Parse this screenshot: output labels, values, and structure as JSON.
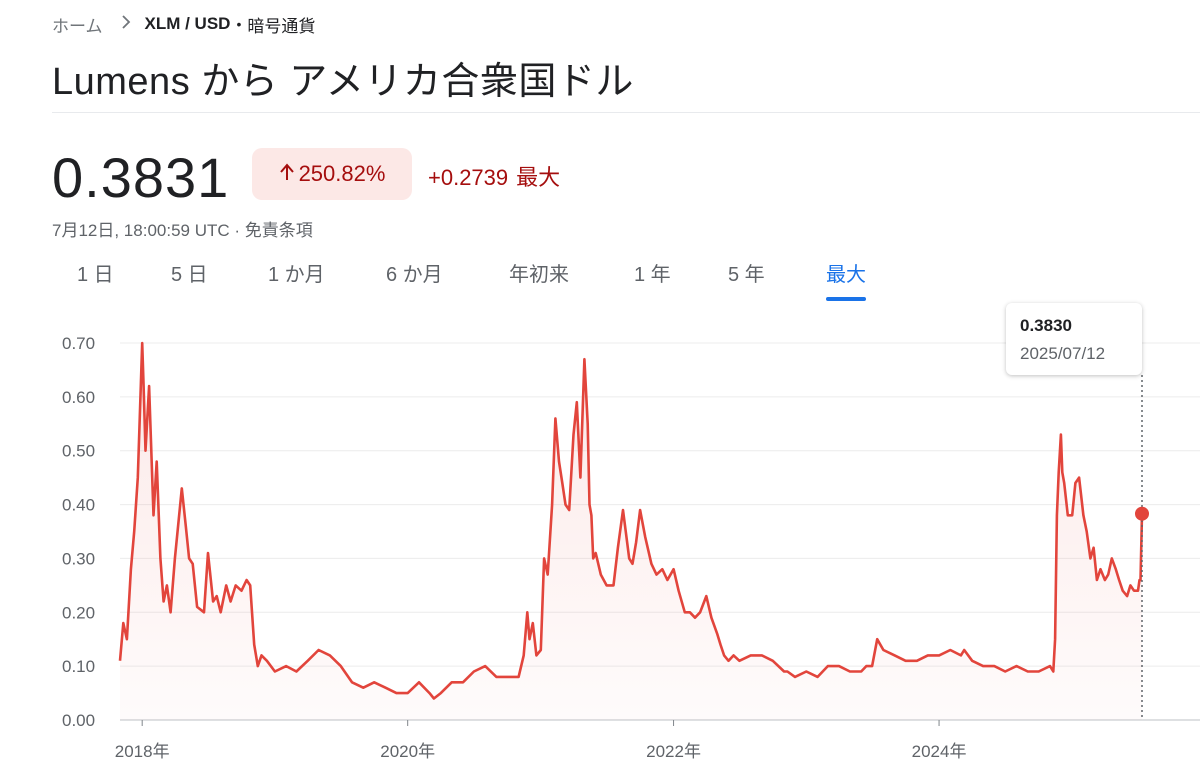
{
  "breadcrumb": {
    "home": "ホーム",
    "pair": "XLM / USD",
    "category": "暗号通貨"
  },
  "title": "Lumens から アメリカ合衆国ドル",
  "quote": {
    "price": "0.3831",
    "change_pct": "250.82%",
    "change_abs": "+0.2739",
    "range_label": "最大",
    "timestamp": "7月12日, 18:00:59 UTC",
    "disclaimer": "免責条項"
  },
  "tabs": [
    {
      "label": "1 日",
      "active": false
    },
    {
      "label": "5 日",
      "active": false
    },
    {
      "label": "1 か月",
      "active": false
    },
    {
      "label": "6 か月",
      "active": false
    },
    {
      "label": "年初来",
      "active": false
    },
    {
      "label": "1 年",
      "active": false
    },
    {
      "label": "5 年",
      "active": false
    },
    {
      "label": "最大",
      "active": true
    }
  ],
  "tooltip": {
    "value": "0.3830",
    "date": "2025/07/12"
  },
  "colors": {
    "line": "#e2453c",
    "negative": "#a50e0e",
    "badge_bg": "#fce8e6",
    "accent": "#1a73e8"
  },
  "chart_data": {
    "type": "area",
    "x_label_years": [
      "2018年",
      "2020年",
      "2022年",
      "2024年"
    ],
    "yticks": [
      "0.70",
      "0.60",
      "0.50",
      "0.40",
      "0.30",
      "0.20",
      "0.10",
      "0.00"
    ],
    "ylim": [
      0,
      0.7
    ],
    "grid": true,
    "series": [
      {
        "x": [
          "2017-11-01",
          "2017-11-10",
          "2017-11-20",
          "2017-12-01",
          "2017-12-10",
          "2017-12-20",
          "2018-01-01",
          "2018-01-05",
          "2018-01-10",
          "2018-01-20",
          "2018-02-01",
          "2018-02-10",
          "2018-02-20",
          "2018-03-01",
          "2018-03-10",
          "2018-03-20",
          "2018-04-01",
          "2018-04-20",
          "2018-05-01",
          "2018-05-10",
          "2018-05-20",
          "2018-06-01",
          "2018-06-20",
          "2018-07-01",
          "2018-07-15",
          "2018-07-25",
          "2018-08-05",
          "2018-08-20",
          "2018-09-01",
          "2018-09-15",
          "2018-10-01",
          "2018-10-15",
          "2018-10-25",
          "2018-11-05",
          "2018-11-15",
          "2018-11-25",
          "2018-12-10",
          "2019-01-01",
          "2019-02-01",
          "2019-03-01",
          "2019-04-01",
          "2019-05-01",
          "2019-06-01",
          "2019-07-01",
          "2019-08-01",
          "2019-09-01",
          "2019-10-01",
          "2019-11-01",
          "2019-12-01",
          "2020-01-01",
          "2020-02-01",
          "2020-03-01",
          "2020-03-13",
          "2020-04-01",
          "2020-05-01",
          "2020-06-01",
          "2020-07-01",
          "2020-08-01",
          "2020-09-01",
          "2020-10-01",
          "2020-11-01",
          "2020-11-15",
          "2020-11-25",
          "2020-12-01",
          "2020-12-10",
          "2020-12-20",
          "2021-01-01",
          "2021-01-10",
          "2021-01-20",
          "2021-02-01",
          "2021-02-10",
          "2021-02-20",
          "2021-03-01",
          "2021-03-10",
          "2021-03-20",
          "2021-04-01",
          "2021-04-10",
          "2021-04-20",
          "2021-05-01",
          "2021-05-10",
          "2021-05-15",
          "2021-05-20",
          "2021-05-25",
          "2021-06-01",
          "2021-06-15",
          "2021-07-01",
          "2021-07-20",
          "2021-08-01",
          "2021-08-15",
          "2021-09-01",
          "2021-09-10",
          "2021-09-20",
          "2021-10-01",
          "2021-10-15",
          "2021-11-01",
          "2021-11-15",
          "2021-12-01",
          "2021-12-15",
          "2022-01-01",
          "2022-01-15",
          "2022-02-01",
          "2022-02-15",
          "2022-03-01",
          "2022-03-15",
          "2022-04-01",
          "2022-04-15",
          "2022-05-01",
          "2022-05-10",
          "2022-05-20",
          "2022-06-01",
          "2022-06-15",
          "2022-07-01",
          "2022-08-01",
          "2022-09-01",
          "2022-10-01",
          "2022-11-01",
          "2022-11-10",
          "2022-12-01",
          "2023-01-01",
          "2023-02-01",
          "2023-03-01",
          "2023-04-01",
          "2023-05-01",
          "2023-06-01",
          "2023-06-15",
          "2023-07-01",
          "2023-07-15",
          "2023-08-01",
          "2023-09-01",
          "2023-10-01",
          "2023-11-01",
          "2023-12-01",
          "2024-01-01",
          "2024-02-01",
          "2024-03-01",
          "2024-03-10",
          "2024-04-01",
          "2024-05-01",
          "2024-06-01",
          "2024-07-01",
          "2024-08-01",
          "2024-09-01",
          "2024-10-01",
          "2024-11-01",
          "2024-11-10",
          "2024-11-15",
          "2024-11-20",
          "2024-11-25",
          "2024-12-01",
          "2024-12-05",
          "2024-12-10",
          "2024-12-20",
          "2025-01-01",
          "2025-01-10",
          "2025-01-20",
          "2025-02-01",
          "2025-02-10",
          "2025-02-20",
          "2025-03-01",
          "2025-03-10",
          "2025-03-20",
          "2025-04-01",
          "2025-04-10",
          "2025-04-20",
          "2025-05-01",
          "2025-05-10",
          "2025-05-20",
          "2025-06-01",
          "2025-06-10",
          "2025-06-20",
          "2025-07-01",
          "2025-07-05",
          "2025-07-08",
          "2025-07-12"
        ],
        "values": [
          0.11,
          0.18,
          0.15,
          0.28,
          0.35,
          0.45,
          0.7,
          0.62,
          0.5,
          0.62,
          0.38,
          0.48,
          0.3,
          0.22,
          0.25,
          0.2,
          0.3,
          0.43,
          0.36,
          0.3,
          0.29,
          0.21,
          0.2,
          0.31,
          0.22,
          0.23,
          0.2,
          0.25,
          0.22,
          0.25,
          0.24,
          0.26,
          0.25,
          0.14,
          0.1,
          0.12,
          0.11,
          0.09,
          0.1,
          0.09,
          0.11,
          0.13,
          0.12,
          0.1,
          0.07,
          0.06,
          0.07,
          0.06,
          0.05,
          0.05,
          0.07,
          0.05,
          0.04,
          0.05,
          0.07,
          0.07,
          0.09,
          0.1,
          0.08,
          0.08,
          0.08,
          0.12,
          0.2,
          0.15,
          0.18,
          0.12,
          0.13,
          0.3,
          0.27,
          0.4,
          0.56,
          0.48,
          0.44,
          0.4,
          0.39,
          0.53,
          0.59,
          0.45,
          0.67,
          0.55,
          0.4,
          0.38,
          0.3,
          0.31,
          0.27,
          0.25,
          0.25,
          0.32,
          0.39,
          0.3,
          0.29,
          0.33,
          0.39,
          0.34,
          0.29,
          0.27,
          0.28,
          0.26,
          0.28,
          0.24,
          0.2,
          0.2,
          0.19,
          0.2,
          0.23,
          0.19,
          0.16,
          0.14,
          0.12,
          0.11,
          0.12,
          0.11,
          0.12,
          0.12,
          0.11,
          0.09,
          0.09,
          0.08,
          0.09,
          0.08,
          0.1,
          0.1,
          0.09,
          0.09,
          0.1,
          0.1,
          0.15,
          0.13,
          0.12,
          0.11,
          0.11,
          0.12,
          0.12,
          0.13,
          0.12,
          0.13,
          0.11,
          0.1,
          0.1,
          0.09,
          0.1,
          0.09,
          0.09,
          0.1,
          0.09,
          0.15,
          0.38,
          0.46,
          0.53,
          0.46,
          0.44,
          0.38,
          0.38,
          0.44,
          0.45,
          0.38,
          0.35,
          0.3,
          0.32,
          0.26,
          0.28,
          0.26,
          0.27,
          0.3,
          0.28,
          0.26,
          0.24,
          0.23,
          0.25,
          0.24,
          0.24,
          0.26,
          0.26,
          0.383
        ]
      }
    ],
    "x_range": [
      "2017-11-01",
      "2025-07-12"
    ],
    "marker": {
      "date": "2025-07-12",
      "value": 0.383
    }
  }
}
